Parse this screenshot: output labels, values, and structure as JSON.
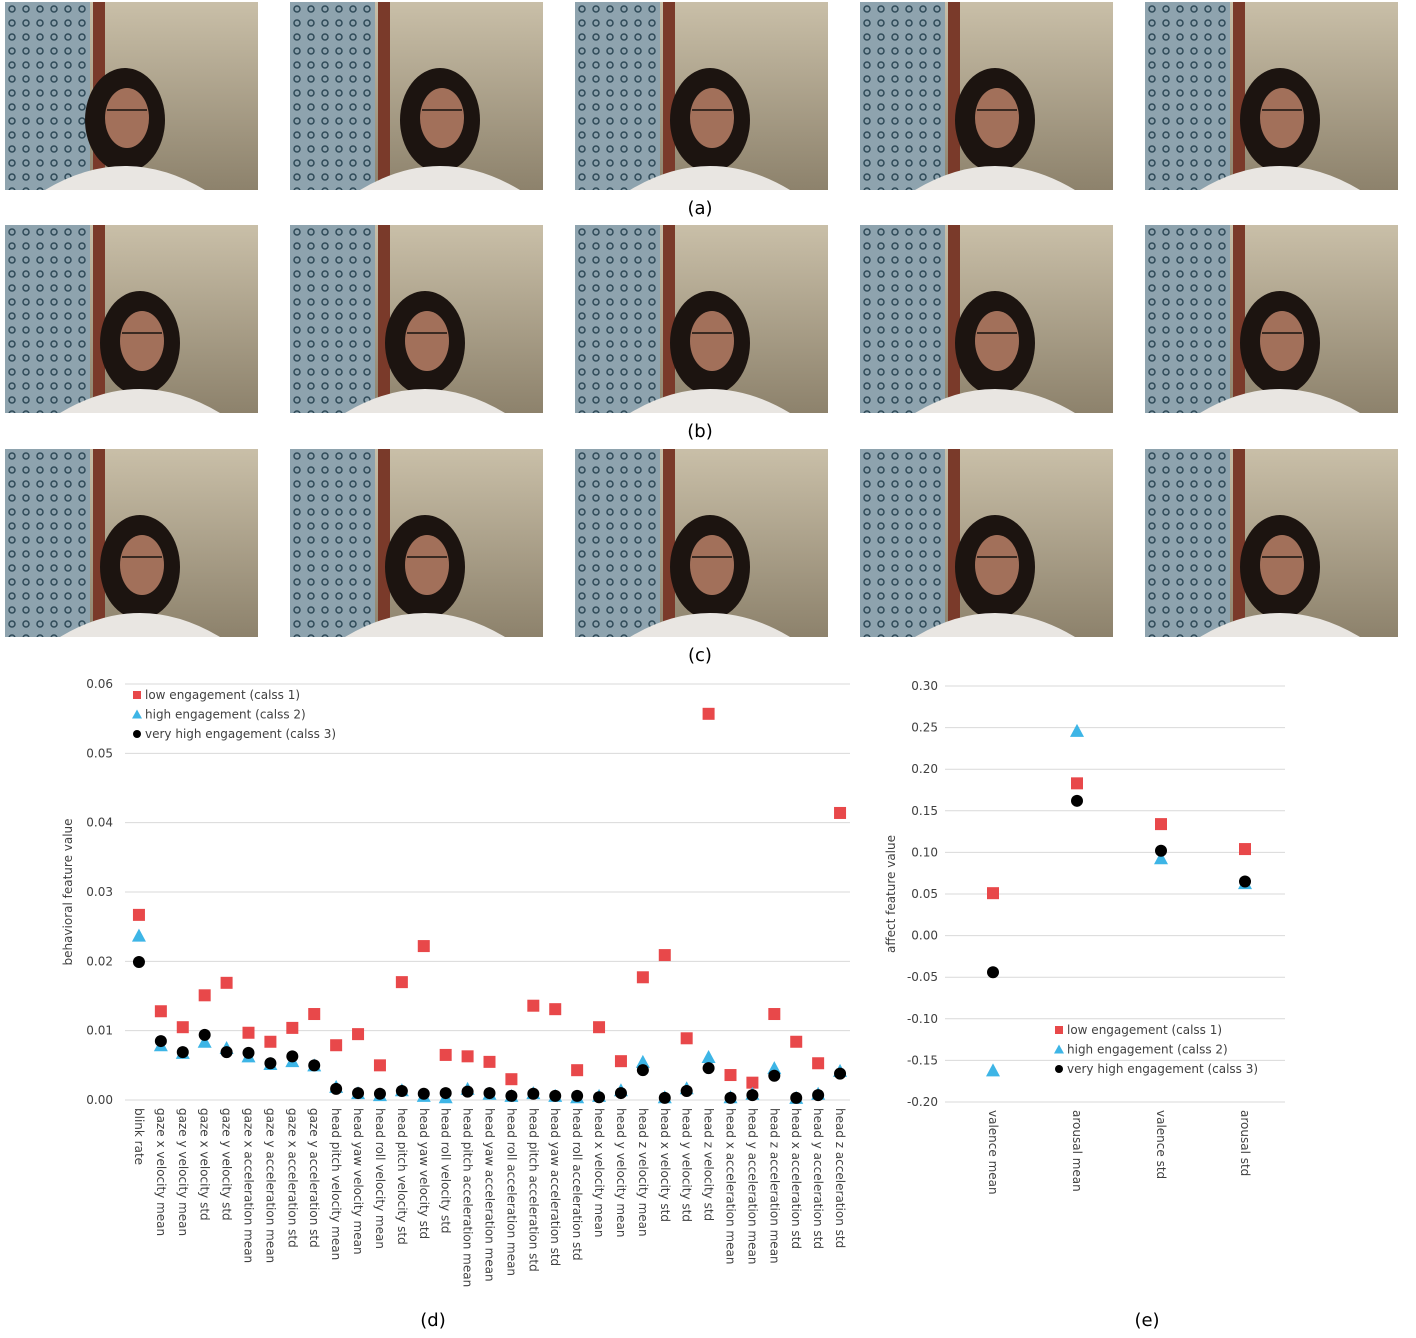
{
  "photos": {
    "captions": [
      "(a)",
      "(b)",
      "(c)"
    ]
  },
  "chart_data": [
    {
      "type": "scatter",
      "caption": "(d)",
      "ylabel": "behavioral feature value",
      "categories": [
        "blink rate",
        "gaze x velocity mean",
        "gaze y velocity mean",
        "gaze x velocity std",
        "gaze y velocity std",
        "gaze x acceleration mean",
        "gaze y acceleration mean",
        "gaze x acceleration std",
        "gaze y acceleration std",
        "head pitch velocity mean",
        "head yaw velocity mean",
        "head roll velocity mean",
        "head pitch velocity std",
        "head yaw velocity std",
        "head roll velocity std",
        "head pitch acceleration mean",
        "head yaw acceleration mean",
        "head roll acceleration mean",
        "head pitch acceleration std",
        "head yaw acceleration std",
        "head roll acceleration std",
        "head x velocity mean",
        "head y velocity mean",
        "head z velocity mean",
        "head x velocity std",
        "head y velocity std",
        "head z velocity std",
        "head x acceleration mean",
        "head y acceleration mean",
        "head z acceleration mean",
        "head x acceleration std",
        "head y acceleration std",
        "head z acceleration std"
      ],
      "series": [
        {
          "name": "low engagement (calss 1)",
          "color": "#e8484a",
          "marker": "square",
          "values": [
            0.0267,
            0.0128,
            0.0105,
            0.0151,
            0.0169,
            0.0097,
            0.0084,
            0.0104,
            0.0124,
            0.0079,
            0.0095,
            0.005,
            0.017,
            0.0222,
            0.0065,
            0.0063,
            0.0055,
            0.003,
            0.0136,
            0.0131,
            0.0043,
            0.0105,
            0.0056,
            0.0177,
            0.0209,
            0.0089,
            0.0557,
            0.0036,
            0.0025,
            0.0124,
            0.0084,
            0.0053,
            0.0414
          ]
        },
        {
          "name": "high engagement (calss 2)",
          "color": "#3db5e6",
          "marker": "triangle",
          "values": [
            0.0237,
            0.0079,
            0.0068,
            0.0084,
            0.0075,
            0.0063,
            0.0052,
            0.0056,
            0.005,
            0.0019,
            0.001,
            0.0007,
            0.0014,
            0.0006,
            0.0004,
            0.0016,
            0.0009,
            0.0006,
            0.001,
            0.0006,
            0.0004,
            0.0006,
            0.0014,
            0.0055,
            0.0004,
            0.0017,
            0.0062,
            0.0004,
            0.0009,
            0.0046,
            0.0003,
            0.0009,
            0.0042
          ]
        },
        {
          "name": "very high engagement (calss 3)",
          "color": "#000000",
          "marker": "circle",
          "values": [
            0.0199,
            0.0085,
            0.0069,
            0.0094,
            0.0069,
            0.0068,
            0.0053,
            0.0063,
            0.005,
            0.0016,
            0.001,
            0.0009,
            0.0013,
            0.0009,
            0.001,
            0.0012,
            0.001,
            0.0006,
            0.0009,
            0.0006,
            0.0006,
            0.0004,
            0.001,
            0.0043,
            0.0003,
            0.0013,
            0.0046,
            0.0003,
            0.0007,
            0.0035,
            0.0003,
            0.0007,
            0.0038
          ]
        }
      ],
      "ylim": [
        0,
        0.06
      ],
      "yticks": [
        {
          "value": 0,
          "label": "0.00"
        },
        0.01,
        0.02,
        0.03,
        0.04,
        0.05,
        0.06
      ],
      "grid": true,
      "legend": "upper left"
    },
    {
      "type": "scatter",
      "caption": "(e)",
      "ylabel": "affect feature value",
      "categories": [
        "valence mean",
        "arousal mean",
        "valence std",
        "arousal std"
      ],
      "series": [
        {
          "name": "low engagement (calss 1)",
          "color": "#e8484a",
          "marker": "square",
          "values": [
            0.051,
            0.183,
            0.134,
            0.104
          ]
        },
        {
          "name": "high engagement (calss 2)",
          "color": "#3db5e6",
          "marker": "triangle",
          "values": [
            -0.162,
            0.246,
            0.093,
            0.063
          ]
        },
        {
          "name": "very high engagement (calss 3)",
          "color": "#000000",
          "marker": "circle",
          "values": [
            -0.044,
            0.162,
            0.102,
            0.065
          ]
        }
      ],
      "ylim": [
        -0.2,
        0.3
      ],
      "yticks": [
        {
          "value": -0.2,
          "label": "-0.20"
        },
        -0.15,
        {
          "value": -0.1,
          "label": "-0.10"
        },
        -0.05,
        {
          "value": 0,
          "label": "0.00"
        },
        0.05,
        {
          "value": 0.1,
          "label": "0.10"
        },
        0.15,
        {
          "value": 0.2,
          "label": "0.20"
        },
        0.25,
        {
          "value": 0.3,
          "label": "0.30"
        }
      ],
      "grid": true,
      "legend": "lower right"
    }
  ]
}
